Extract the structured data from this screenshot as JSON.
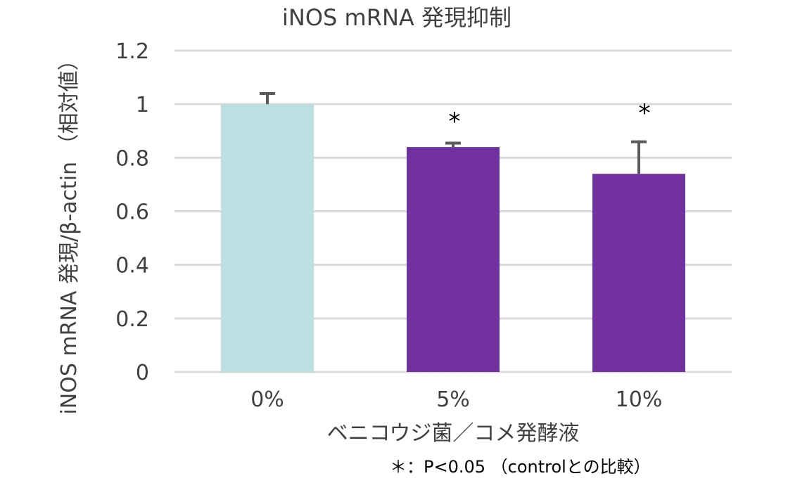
{
  "chart_data": {
    "type": "bar",
    "title": "iNOS mRNA 発現抑制",
    "xlabel": "ベニコウジ菌／コメ発酵液",
    "ylabel": "iNOS mRNA 発現/β-actin （相対値）",
    "categories": [
      "0%",
      "5%",
      "10%"
    ],
    "values": [
      1.0,
      0.84,
      0.74
    ],
    "error_upper": [
      0.045,
      0.02,
      0.125
    ],
    "significance": [
      "",
      "*",
      "*"
    ],
    "colors": [
      "#BCDFE2",
      "#7030A0",
      "#7030A0"
    ],
    "error_color": "#595959",
    "ylim": [
      0,
      1.2
    ],
    "yticks": [
      "0",
      "0.2",
      "0.4",
      "0.6",
      "0.8",
      "1",
      "1.2"
    ],
    "grid": true,
    "note": "＊：P<0.05 （controlとの比較）"
  }
}
